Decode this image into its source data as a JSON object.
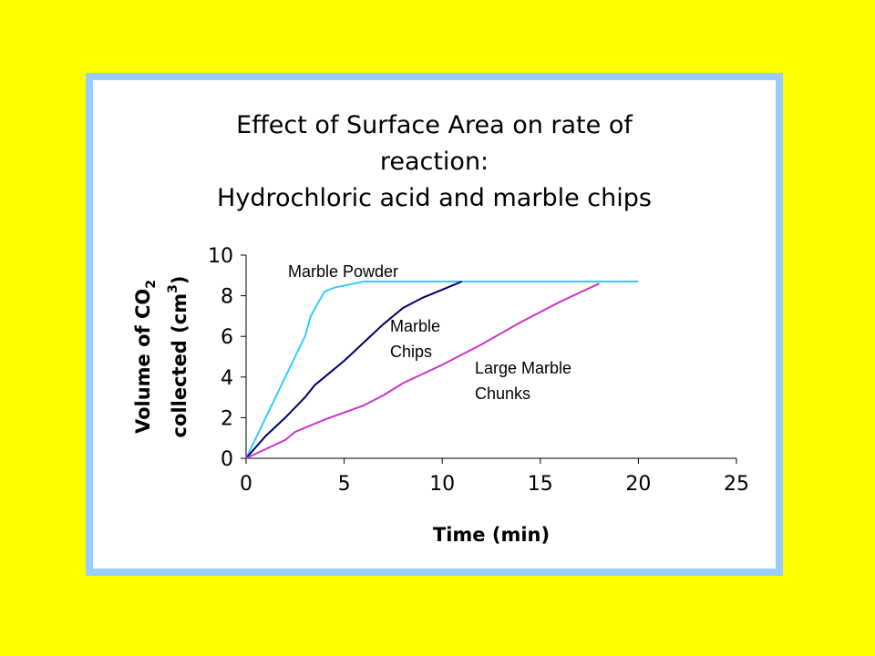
{
  "chart_data": {
    "type": "line",
    "title_lines": [
      "Effect of Surface Area on rate of",
      "reaction:",
      "Hydrochloric acid and marble chips"
    ],
    "xlabel": "Time (min)",
    "ylabel_line1": "Volume of CO",
    "ylabel_sub": "2",
    "ylabel_line2": "collected (cm",
    "ylabel_sup": "3",
    "ylabel_end": ")",
    "xlim": [
      0,
      25
    ],
    "ylim": [
      0,
      10
    ],
    "xticks": [
      0,
      5,
      10,
      15,
      20,
      25
    ],
    "yticks": [
      0,
      2,
      4,
      6,
      8,
      10
    ],
    "grid": false,
    "series": [
      {
        "name": "Marble Powder",
        "color": "#33CCFF",
        "points": [
          [
            0,
            0
          ],
          [
            0.5,
            1
          ],
          [
            1,
            2
          ],
          [
            1.5,
            3
          ],
          [
            2,
            4
          ],
          [
            2.5,
            5
          ],
          [
            3,
            6
          ],
          [
            3.3,
            7
          ],
          [
            3.7,
            7.7
          ],
          [
            4,
            8.2
          ],
          [
            4.5,
            8.4
          ],
          [
            5,
            8.5
          ],
          [
            6,
            8.7
          ],
          [
            8,
            8.7
          ],
          [
            10,
            8.7
          ],
          [
            15,
            8.7
          ],
          [
            20,
            8.7
          ]
        ]
      },
      {
        "name": "Marble Chips",
        "color": "#000066",
        "points": [
          [
            0,
            0
          ],
          [
            1,
            1.1
          ],
          [
            2,
            2
          ],
          [
            3,
            3
          ],
          [
            3.5,
            3.6
          ],
          [
            4,
            4
          ],
          [
            5,
            4.8
          ],
          [
            6,
            5.7
          ],
          [
            7,
            6.6
          ],
          [
            8,
            7.4
          ],
          [
            9,
            7.9
          ],
          [
            10,
            8.3
          ],
          [
            11,
            8.7
          ]
        ]
      },
      {
        "name": "Large Marble Chunks",
        "color": "#CC33CC",
        "points": [
          [
            0,
            0
          ],
          [
            2,
            0.9
          ],
          [
            2.5,
            1.3
          ],
          [
            4,
            1.9
          ],
          [
            6,
            2.6
          ],
          [
            7,
            3.1
          ],
          [
            8,
            3.7
          ],
          [
            10,
            4.6
          ],
          [
            12,
            5.6
          ],
          [
            14,
            6.7
          ],
          [
            16,
            7.7
          ],
          [
            18,
            8.6
          ]
        ]
      }
    ],
    "annotations": [
      {
        "lines": [
          "Marble Powder"
        ]
      },
      {
        "lines": [
          "Marble",
          "Chips"
        ]
      },
      {
        "lines": [
          "Large Marble",
          "Chunks"
        ]
      }
    ]
  }
}
